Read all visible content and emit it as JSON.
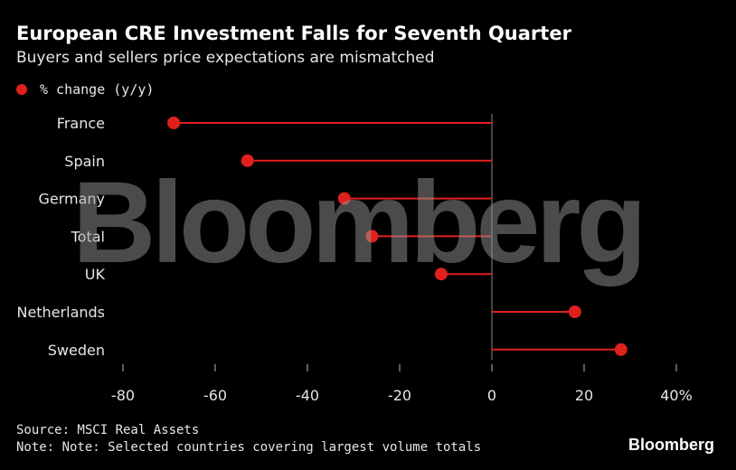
{
  "chart_data": {
    "type": "lollipop",
    "title": "European CRE Investment Falls for Seventh Quarter",
    "subtitle": "Buyers and sellers price expectations are mismatched",
    "legend": "% change (y/y)",
    "categories": [
      "France",
      "Spain",
      "Germany",
      "Total",
      "UK",
      "Netherlands",
      "Sweden"
    ],
    "values": [
      -69,
      -53,
      -32,
      -26,
      -11,
      18,
      28
    ],
    "xlim": [
      -80,
      40
    ],
    "xticks": [
      "-80",
      "-60",
      "-40",
      "-20",
      "0",
      "20",
      "40%"
    ],
    "xtick_values": [
      -80,
      -60,
      -40,
      -20,
      0,
      20,
      40
    ],
    "xlabel": "",
    "ylabel": "",
    "color": "#e0201c"
  },
  "source": "Source: MSCI Real Assets",
  "note": "Note: Note: Selected countries covering largest volume totals",
  "logo": "Bloomberg",
  "watermark": "Bloomberg"
}
